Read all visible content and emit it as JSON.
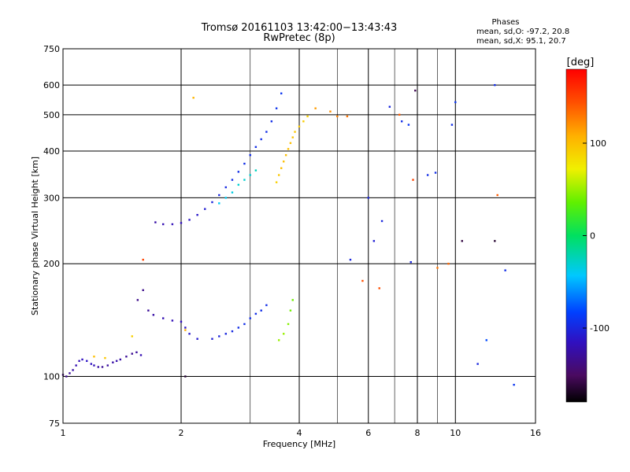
{
  "chart_data": {
    "type": "scatter",
    "title": "Tromsø 20161103 13:42:00−13:43:43",
    "subtitle": "RwPretec (8p)",
    "xlabel": "Frequency [MHz]",
    "ylabel": "Stationary phase Virtual Height [km]",
    "x_scale": "log2",
    "y_scale": "log",
    "xlim": [
      1,
      16
    ],
    "ylim": [
      75,
      750
    ],
    "x_ticks": [
      1,
      2,
      4,
      6,
      8,
      10,
      16
    ],
    "x_tick_labels": [
      "1",
      "2",
      "4",
      "6",
      "8",
      "10",
      "16"
    ],
    "x_minor_gridlines": [
      3,
      5,
      7,
      9
    ],
    "y_ticks": [
      75,
      100,
      200,
      300,
      400,
      500,
      600,
      750
    ],
    "y_tick_labels": [
      "75",
      "100",
      "200",
      "300",
      "400",
      "500",
      "600",
      "750"
    ],
    "grid": true,
    "phases_info": {
      "title": "Phases",
      "line_o": "mean, sd,O:  -97.2, 20.8",
      "line_x": "mean, sd,X:  95.1, 20.7"
    },
    "colorbar": {
      "label": "[deg]",
      "range": [
        -180,
        180
      ],
      "ticks": [
        100,
        0,
        -100
      ],
      "tick_labels": [
        "100",
        "0",
        "-100"
      ],
      "colormap": "rainbow"
    },
    "traces": [
      {
        "name": "",
        "points": [
          [
            1.0,
            101,
            -140
          ],
          [
            1.02,
            100,
            -135
          ],
          [
            1.04,
            102,
            -130
          ],
          [
            1.06,
            104,
            -125
          ],
          [
            1.08,
            107,
            -120
          ],
          [
            1.1,
            110,
            -118
          ],
          [
            1.12,
            111,
            -115
          ],
          [
            1.15,
            110,
            -112
          ],
          [
            1.18,
            108,
            -115
          ],
          [
            1.2,
            107,
            -118
          ],
          [
            1.23,
            106,
            -125
          ],
          [
            1.26,
            106,
            -130
          ],
          [
            1.3,
            107,
            -128
          ],
          [
            1.34,
            109,
            -125
          ],
          [
            1.37,
            110,
            -122
          ],
          [
            1.4,
            111,
            -125
          ],
          [
            1.45,
            113,
            -130
          ],
          [
            1.5,
            115,
            -132
          ],
          [
            1.54,
            116,
            -128
          ],
          [
            1.58,
            114,
            -120
          ]
        ]
      },
      {
        "name": "",
        "points": [
          [
            1.55,
            160,
            -135
          ],
          [
            1.6,
            170,
            -135
          ],
          [
            1.65,
            150,
            -130
          ],
          [
            1.7,
            146,
            -125
          ],
          [
            1.8,
            143,
            -120
          ],
          [
            1.9,
            141,
            -118
          ],
          [
            2.0,
            140,
            -116
          ],
          [
            2.05,
            135,
            -112
          ],
          [
            2.1,
            130,
            -110
          ],
          [
            2.2,
            126,
            -108
          ],
          [
            2.4,
            126,
            -105
          ],
          [
            2.5,
            128,
            -102
          ],
          [
            2.6,
            130,
            -100
          ],
          [
            2.7,
            132,
            -98
          ],
          [
            2.8,
            135,
            -95
          ],
          [
            2.9,
            138,
            -95
          ],
          [
            3.0,
            143,
            -95
          ],
          [
            3.1,
            147,
            -95
          ],
          [
            3.2,
            150,
            -95
          ],
          [
            3.3,
            155,
            -95
          ]
        ]
      },
      {
        "name": "",
        "points": [
          [
            1.72,
            258,
            -125
          ],
          [
            1.8,
            255,
            -120
          ],
          [
            1.9,
            255,
            -118
          ],
          [
            2.0,
            257,
            -116
          ],
          [
            2.1,
            262,
            -112
          ],
          [
            2.2,
            270,
            -110
          ],
          [
            2.3,
            280,
            -106
          ],
          [
            2.4,
            292,
            -102
          ],
          [
            2.5,
            305,
            -100
          ],
          [
            2.6,
            320,
            -98
          ],
          [
            2.7,
            335,
            -96
          ],
          [
            2.8,
            352,
            -95
          ],
          [
            2.9,
            370,
            -95
          ],
          [
            3.0,
            390,
            -95
          ],
          [
            3.1,
            410,
            -95
          ],
          [
            3.2,
            430,
            -95
          ],
          [
            3.3,
            450,
            -95
          ],
          [
            3.4,
            480,
            -95
          ],
          [
            3.5,
            520,
            -92
          ],
          [
            3.6,
            570,
            -90
          ]
        ]
      },
      {
        "name": "",
        "points": [
          [
            2.5,
            290,
            -40
          ],
          [
            2.6,
            300,
            -40
          ],
          [
            2.7,
            310,
            -35
          ],
          [
            2.8,
            325,
            -30
          ],
          [
            2.9,
            335,
            -30
          ],
          [
            3.0,
            345,
            -30
          ],
          [
            3.1,
            355,
            -25
          ]
        ]
      },
      {
        "name": "",
        "points": [
          [
            3.5,
            330,
            90
          ],
          [
            3.55,
            345,
            95
          ],
          [
            3.6,
            360,
            100
          ],
          [
            3.65,
            375,
            100
          ],
          [
            3.7,
            390,
            100
          ],
          [
            3.75,
            405,
            100
          ],
          [
            3.8,
            420,
            100
          ],
          [
            3.85,
            435,
            98
          ],
          [
            3.9,
            450,
            95
          ],
          [
            4.0,
            465,
            95
          ],
          [
            4.1,
            480,
            92
          ],
          [
            4.2,
            495,
            90
          ]
        ]
      },
      {
        "name": "",
        "points": [
          [
            3.55,
            125,
            50
          ],
          [
            3.65,
            130,
            50
          ],
          [
            3.75,
            138,
            45
          ],
          [
            3.8,
            150,
            40
          ],
          [
            3.85,
            160,
            40
          ]
        ]
      },
      {
        "name": "",
        "points": [
          [
            1.2,
            113,
            100
          ],
          [
            1.28,
            112,
            95
          ],
          [
            1.5,
            128,
            90
          ],
          [
            1.6,
            205,
            150
          ],
          [
            2.05,
            133,
            110
          ],
          [
            2.15,
            555,
            105
          ],
          [
            4.4,
            520,
            115
          ],
          [
            4.8,
            510,
            120
          ],
          [
            5.0,
            495,
            125
          ],
          [
            5.3,
            495,
            130
          ],
          [
            5.8,
            180,
            145
          ],
          [
            6.4,
            172,
            145
          ],
          [
            7.2,
            500,
            140
          ],
          [
            7.8,
            335,
            150
          ],
          [
            9.0,
            195,
            130
          ],
          [
            9.6,
            200,
            135
          ],
          [
            12.8,
            305,
            140
          ]
        ]
      },
      {
        "name": "",
        "points": [
          [
            5.4,
            205,
            -100
          ],
          [
            6.0,
            300,
            -100
          ],
          [
            6.2,
            230,
            -105
          ],
          [
            6.5,
            260,
            -100
          ],
          [
            6.8,
            525,
            -100
          ],
          [
            7.3,
            480,
            -95
          ],
          [
            7.6,
            470,
            -90
          ],
          [
            7.7,
            202,
            -100
          ],
          [
            8.5,
            345,
            -95
          ],
          [
            8.9,
            350,
            -95
          ],
          [
            9.8,
            470,
            -95
          ],
          [
            10.0,
            540,
            -90
          ],
          [
            11.4,
            108,
            -100
          ],
          [
            12.0,
            125,
            -80
          ],
          [
            12.6,
            600,
            -95
          ],
          [
            13.4,
            192,
            -95
          ],
          [
            14.1,
            95,
            -90
          ]
        ]
      },
      {
        "name": "",
        "points": [
          [
            7.9,
            580,
            -155
          ],
          [
            10.4,
            230,
            -160
          ],
          [
            12.6,
            230,
            -165
          ],
          [
            2.05,
            100,
            -165
          ]
        ]
      }
    ]
  }
}
